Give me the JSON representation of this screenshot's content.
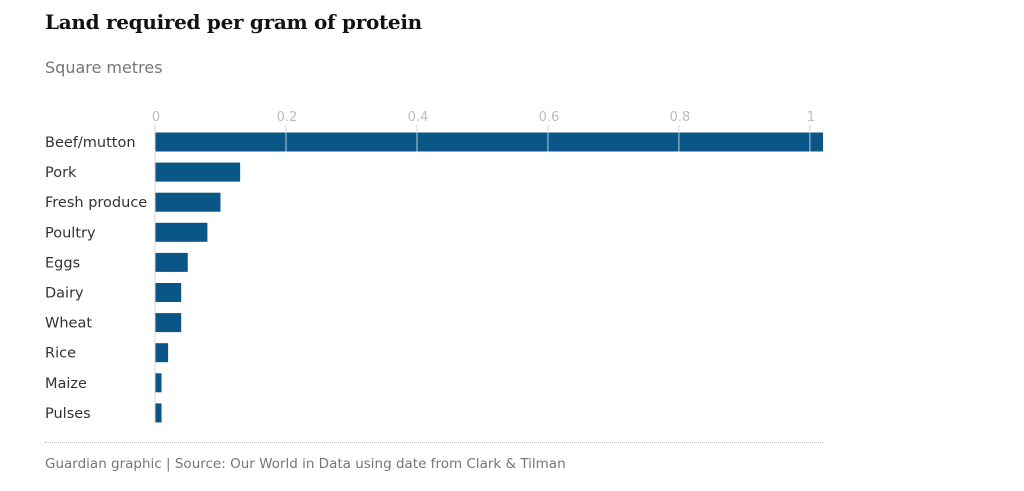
{
  "header": {
    "title": "Land required per gram of protein",
    "subtitle": "Square metres"
  },
  "footer": {
    "source": "Guardian graphic | Source: Our World in Data using date from Clark & Tilman"
  },
  "colors": {
    "bar": "#0a5687",
    "gridline": "#ffffff",
    "tick_label": "#bdbdbd",
    "category_label": "#333333"
  },
  "chart_data": {
    "type": "bar",
    "orientation": "horizontal",
    "categories": [
      "Beef/mutton",
      "Pork",
      "Fresh produce",
      "Poultry",
      "Eggs",
      "Dairy",
      "Wheat",
      "Rice",
      "Maize",
      "Pulses"
    ],
    "values": [
      1.02,
      0.13,
      0.1,
      0.08,
      0.05,
      0.04,
      0.04,
      0.02,
      0.01,
      0.01
    ],
    "xlim": [
      0,
      1.02
    ],
    "xticks": [
      0,
      0.2,
      0.4,
      0.6,
      0.8,
      1
    ],
    "xtick_labels": [
      "0",
      "0.2",
      "0.4",
      "0.6",
      "0.8",
      "1"
    ],
    "axis_position": "top",
    "grid": true,
    "legend": "none"
  }
}
